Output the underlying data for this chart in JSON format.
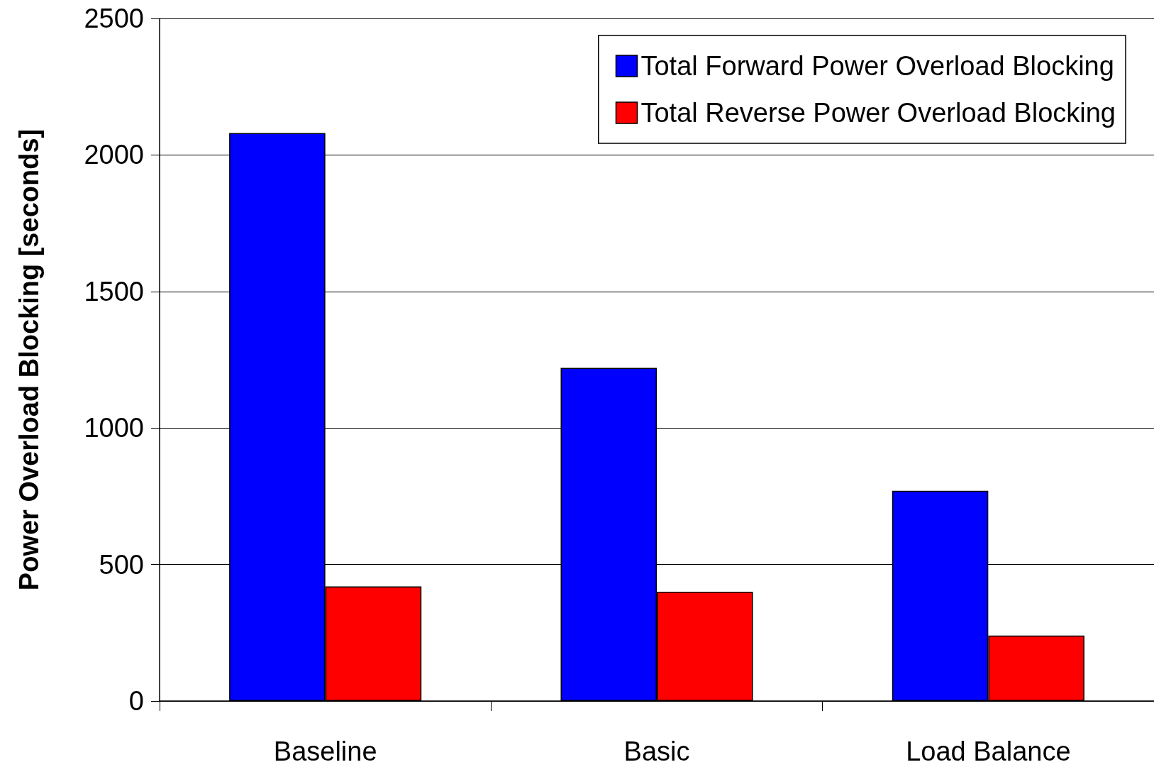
{
  "chart_data": {
    "type": "bar",
    "ylabel": "Power Overload Blocking [seconds]",
    "categories": [
      "Baseline",
      "Basic",
      "Load Balance"
    ],
    "series": [
      {
        "name": "Total Forward Power Overload Blocking",
        "color": "#0000ff",
        "values": [
          2080,
          1220,
          770
        ]
      },
      {
        "name": "Total Reverse Power Overload Blocking",
        "color": "#ff0000",
        "values": [
          420,
          400,
          240
        ]
      }
    ],
    "ylim": [
      0,
      2500
    ],
    "yticks": [
      0,
      500,
      1000,
      1500,
      2000,
      2500
    ],
    "grid": "y",
    "legend": "top right"
  }
}
